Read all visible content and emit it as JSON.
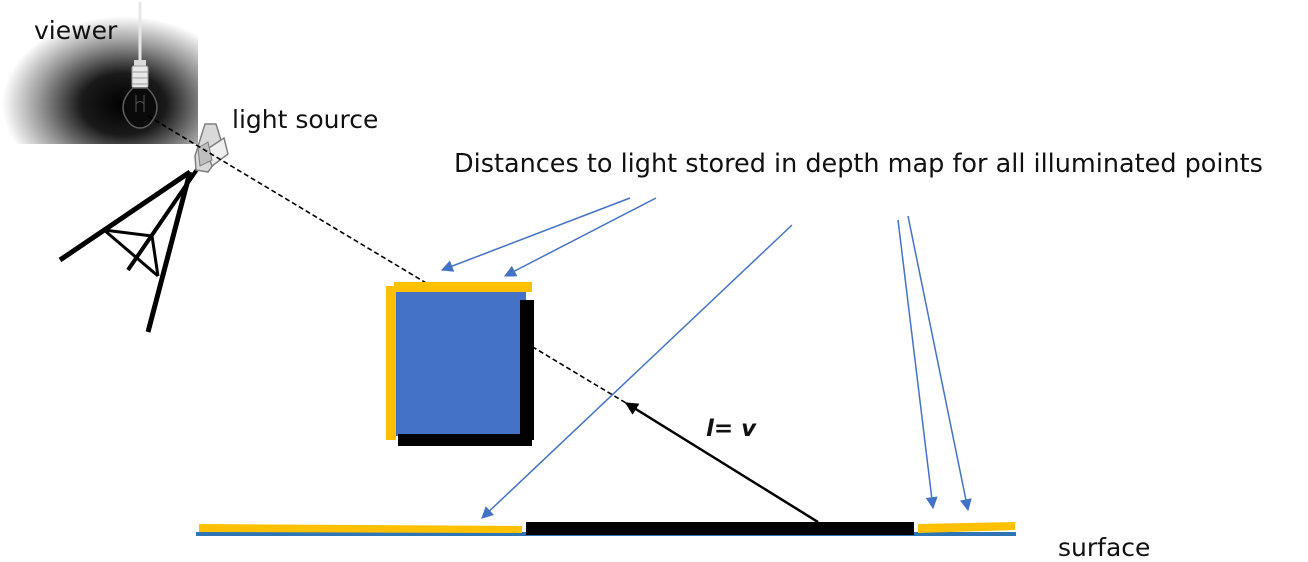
{
  "labels": {
    "viewer": "viewer",
    "light_source": "light source",
    "caption": "Distances to light stored in depth map for all illuminated points",
    "surface": "surface",
    "vector": "l= v"
  },
  "icons": {
    "bulb": "light-bulb-icon",
    "lamp": "spotlight-tripod-icon"
  },
  "colors": {
    "illuminated": "#FFC000",
    "shadowed": "#000000",
    "cube_fill": "#4472C4",
    "pointer_arrow": "#4472C4",
    "surface_base": "#2E75B6"
  }
}
